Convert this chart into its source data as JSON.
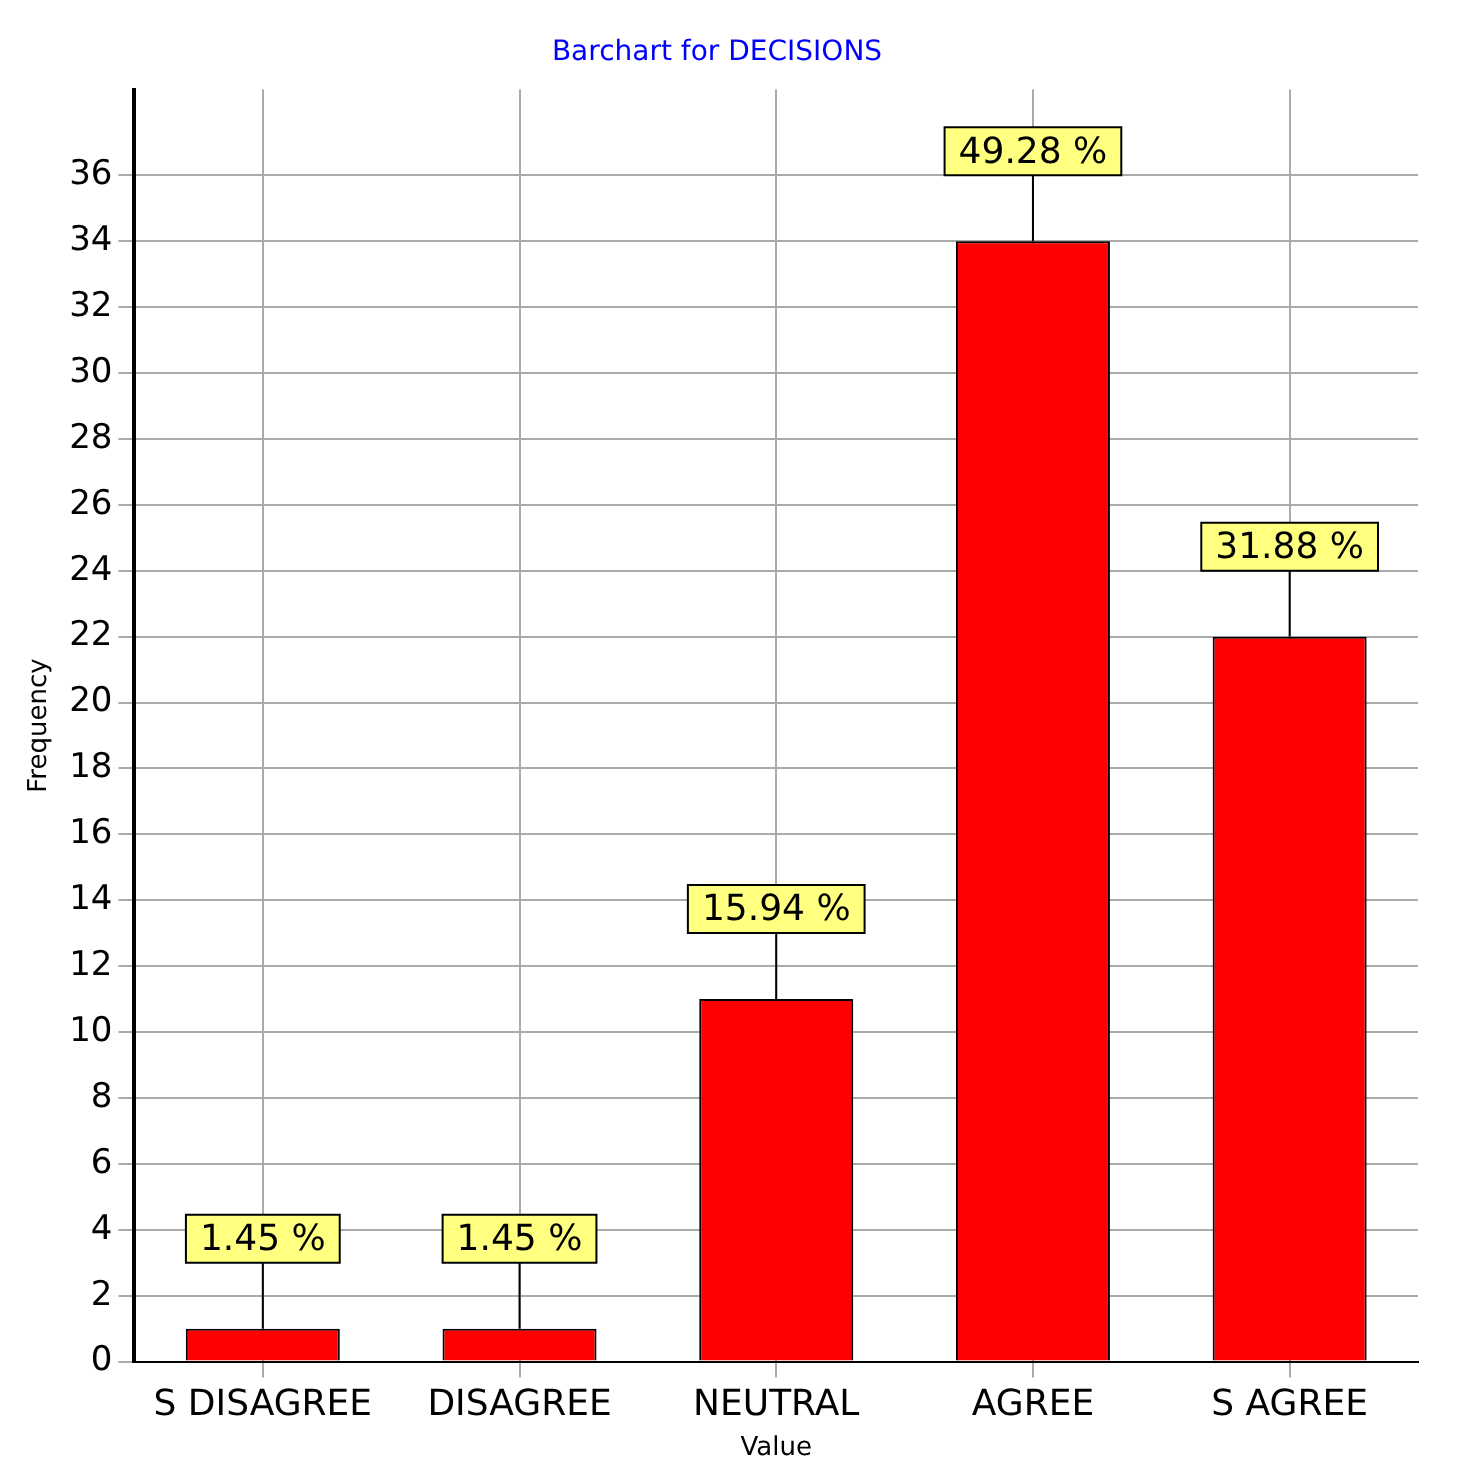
{
  "chart_data": {
    "type": "bar",
    "title": "Barchart for DECISIONS",
    "xlabel": "Value",
    "ylabel": "Frequency",
    "categories": [
      "S DISAGREE",
      "DISAGREE",
      "NEUTRAL",
      "AGREE",
      "S AGREE"
    ],
    "values": [
      1,
      1,
      11,
      34,
      22
    ],
    "annotations": [
      {
        "text": "1.45 %",
        "x": "S DISAGREE",
        "y": 1
      },
      {
        "text": "1.45 %",
        "x": "DISAGREE",
        "y": 1
      },
      {
        "text": "15.94 %",
        "x": "NEUTRAL",
        "y": 11
      },
      {
        "text": "49.28 %",
        "x": "AGREE",
        "y": 34
      },
      {
        "text": "31.88 %",
        "x": "S AGREE",
        "y": 22
      }
    ],
    "color": "#ff0000",
    "ylim": [
      0,
      38.6
    ],
    "yticks": [
      0,
      2,
      4,
      6,
      8,
      10,
      12,
      14,
      16,
      18,
      20,
      22,
      24,
      26,
      28,
      30,
      32,
      34,
      36
    ],
    "grid": true
  }
}
